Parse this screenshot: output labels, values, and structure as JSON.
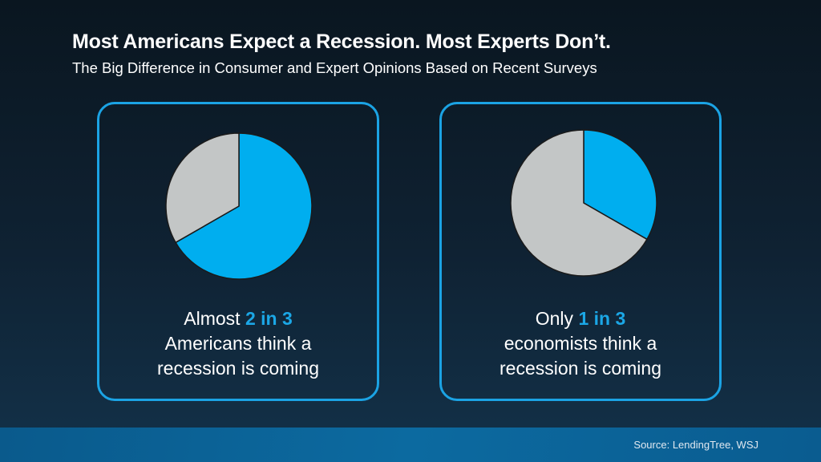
{
  "header": {
    "title": "Most Americans Expect a Recession. Most Experts Don’t.",
    "subtitle": "The Big Difference in Consumer and Expert Opinions Based on Recent Surveys"
  },
  "chart_data": [
    {
      "type": "pie",
      "slices": [
        {
          "label": "think a recession is coming",
          "value": 66.7,
          "color": "#00aeef"
        },
        {
          "label": "other",
          "value": 33.3,
          "color": "#c3c6c6"
        }
      ],
      "caption": {
        "prefix": "Almost ",
        "highlight": "2 in 3",
        "line2": "Americans think a",
        "line3": "recession is coming"
      }
    },
    {
      "type": "pie",
      "slices": [
        {
          "label": "think a recession is coming",
          "value": 33.3,
          "color": "#00aeef"
        },
        {
          "label": "other",
          "value": 66.7,
          "color": "#c3c6c6"
        }
      ],
      "caption": {
        "prefix": "Only ",
        "highlight": "1 in 3",
        "line2": "economists think a",
        "line3": "recession is coming"
      }
    }
  ],
  "footer": {
    "source": "Source: LendingTree, WSJ"
  },
  "colors": {
    "accent": "#1ba7e6",
    "border": "#1ba3e4",
    "background": "#0f2233"
  }
}
